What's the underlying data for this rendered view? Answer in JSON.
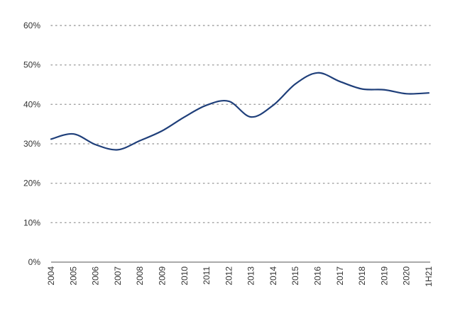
{
  "chart_data": {
    "type": "line",
    "title": "",
    "xlabel": "",
    "ylabel": "",
    "categories": [
      "2004",
      "2005",
      "2006",
      "2007",
      "2008",
      "2009",
      "2010",
      "2011",
      "2012",
      "2013",
      "2014",
      "2015",
      "2016",
      "2017",
      "2018",
      "2019",
      "2020",
      "1H21"
    ],
    "series": [
      {
        "values": [
          31.2,
          32.5,
          29.8,
          28.5,
          30.8,
          33.3,
          36.8,
          39.8,
          40.8,
          36.8,
          39.8,
          45.2,
          48.0,
          45.8,
          43.9,
          43.7,
          42.7,
          42.9
        ],
        "color": "#1f3f7a"
      }
    ],
    "ylim": [
      0,
      60
    ],
    "yticks": [
      0,
      10,
      20,
      30,
      40,
      50,
      60
    ],
    "ytick_labels": [
      "0%",
      "10%",
      "20%",
      "30%",
      "40%",
      "50%",
      "60%"
    ],
    "grid": true,
    "legend": "none",
    "colors": {
      "line": "#1f3f7a",
      "grid": "#a0a0a0",
      "baseline": "#555555",
      "text": "#333333"
    }
  }
}
